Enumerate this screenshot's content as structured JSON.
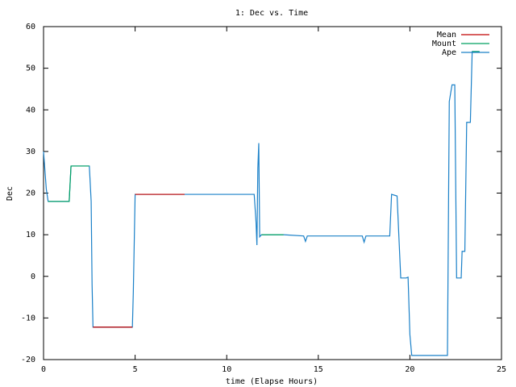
{
  "chart_data": {
    "type": "line",
    "title": "1: Dec vs. Time",
    "x_label": "time (Elapse Hours)",
    "y_label": "Dec",
    "x": [
      0,
      0.1,
      0.15,
      0.25,
      1.4,
      1.5,
      2.5,
      2.6,
      2.65,
      2.7,
      4.85,
      4.9,
      5.0,
      7.7,
      11.5,
      11.6,
      11.65,
      11.7,
      11.75,
      11.8,
      11.9,
      13.1,
      14.2,
      14.3,
      14.4,
      17.4,
      17.5,
      17.6,
      18.9,
      19.0,
      19.3,
      19.5,
      19.8,
      19.9,
      20.0,
      20.1,
      22.05,
      22.15,
      22.3,
      22.45,
      22.55,
      22.8,
      22.85,
      23.0,
      23.1,
      23.3,
      23.4,
      23.8
    ],
    "series": [
      {
        "name": "Mean",
        "color": "#c00000",
        "values": [
          null,
          null,
          null,
          null,
          null,
          null,
          null,
          null,
          null,
          -12.2,
          -12.2,
          null,
          19.7,
          19.7,
          null,
          null,
          null,
          null,
          null,
          null,
          null,
          null,
          null,
          null,
          null,
          null,
          null,
          null,
          null,
          null,
          null,
          null,
          null,
          null,
          null,
          null,
          null,
          null,
          null,
          null,
          null,
          null,
          null,
          null,
          null,
          null,
          null,
          null
        ]
      },
      {
        "name": "Mount",
        "color": "#00a060",
        "values": [
          null,
          null,
          null,
          18,
          18,
          26.5,
          26.5,
          null,
          null,
          null,
          null,
          null,
          null,
          null,
          null,
          null,
          null,
          null,
          null,
          null,
          10,
          10,
          null,
          null,
          null,
          null,
          null,
          null,
          null,
          null,
          null,
          null,
          null,
          null,
          null,
          null,
          null,
          null,
          null,
          null,
          null,
          null,
          null,
          null,
          null,
          null,
          54,
          54
        ]
      },
      {
        "name": "Ape",
        "color": "#1a80c8",
        "values": [
          30,
          24,
          21,
          18,
          18,
          26.5,
          26.5,
          18,
          -2,
          -12.2,
          -12.2,
          -4,
          19.7,
          19.7,
          19.7,
          13,
          7.5,
          26,
          32,
          9.5,
          10,
          10,
          9.7,
          8.4,
          9.7,
          9.7,
          8.2,
          9.7,
          9.7,
          19.7,
          19.3,
          -0.4,
          -0.4,
          -0.2,
          -14,
          -19,
          -19,
          42,
          46,
          46,
          -0.4,
          -0.4,
          6,
          6,
          37,
          37,
          54,
          54
        ]
      }
    ],
    "xlim": [
      0,
      25
    ],
    "xticks": [
      0,
      5,
      10,
      15,
      20,
      25
    ],
    "ylim": [
      -20,
      60
    ],
    "yticks": [
      -20,
      -10,
      0,
      10,
      20,
      30,
      40,
      50,
      60
    ],
    "grid": false,
    "legend": "top-right"
  }
}
